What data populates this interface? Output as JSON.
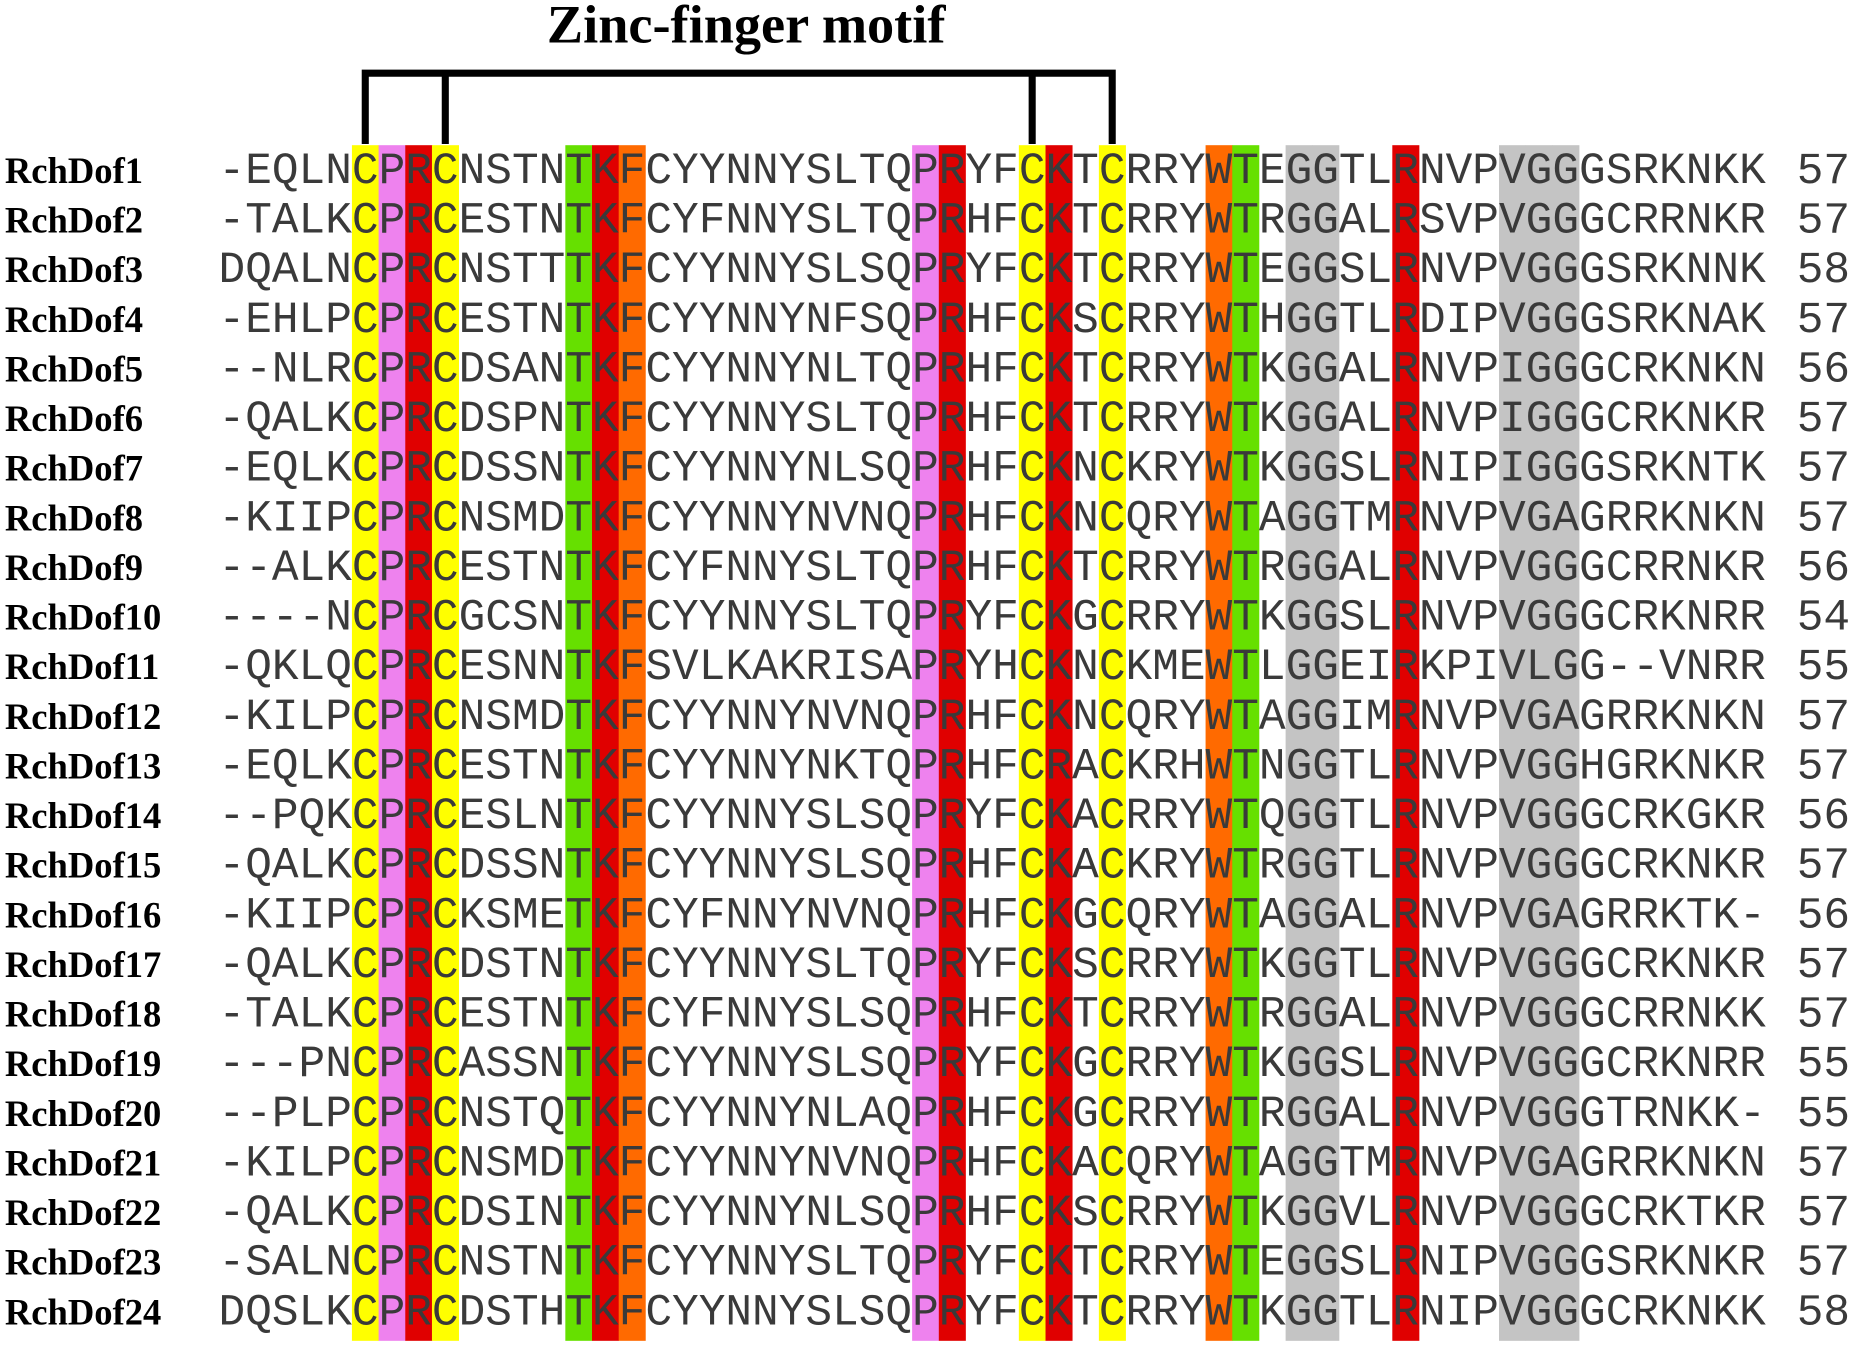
{
  "title": "Zinc-finger motif",
  "rows": [
    {
      "name": "RchDof1",
      "sequence": "-EQLNCPRCNSTNTKFCYYNNYSLTQPRYFCKTCRRYWTEGGTLRNVPVGGGSRKNKK",
      "length": 57
    },
    {
      "name": "RchDof2",
      "sequence": "-TALKCPRCESTNTKFCYFNNYSLTQPRHFCKTCRRYWTRGGALRSVPVGGGCRRNKR",
      "length": 57
    },
    {
      "name": "RchDof3",
      "sequence": "DQALNCPRCNSTTTKFCYYNNYSLSQPRYFCKTCRRYWTEGGSLRNVPVGGGSRKNNK",
      "length": 58
    },
    {
      "name": "RchDof4",
      "sequence": "-EHLPCPRCESTNTKFCYYNNYNFSQPRHFCKSCRRYWTHGGTLRDIPVGGGSRKNAK",
      "length": 57
    },
    {
      "name": "RchDof5",
      "sequence": "--NLRCPRCDSANTKFCYYNNYNLTQPRHFCKTCRRYWTKGGALRNVPIGGGCRKNKN",
      "length": 56
    },
    {
      "name": "RchDof6",
      "sequence": "-QALKCPRCDSPNTKFCYYNNYSLTQPRHFCKTCRRYWTKGGALRNVPIGGGCRKNKR",
      "length": 57
    },
    {
      "name": "RchDof7",
      "sequence": "-EQLKCPRCDSSNTKFCYYNNYNLSQPRHFCKNCKRYWTKGGSLRNIPIGGGSRKNTK",
      "length": 57
    },
    {
      "name": "RchDof8",
      "sequence": "-KIIPCPRCNSMDTKFCYYNNYNVNQPRHFCKNCQRYWTAGGTMRNVPVGAGRRKNKN",
      "length": 57
    },
    {
      "name": "RchDof9",
      "sequence": "--ALKCPRCESTNTKFCYFNNYSLTQPRHFCKTCRRYWTRGGALRNVPVGGGCRRNKR",
      "length": 56
    },
    {
      "name": "RchDof10",
      "sequence": "----NCPRCGCSNTKFCYYNNYSLTQPRYFCKGCRRYWTKGGSLRNVPVGGGCRKNRR",
      "length": 54
    },
    {
      "name": "RchDof11",
      "sequence": "-QKLQCPRCESNNTKFSVLKAKRISAPRYHCKNCKMEWTLGGEIRKPIVLGG--VNRR",
      "length": 55
    },
    {
      "name": "RchDof12",
      "sequence": "-KILPCPRCNSMDTKFCYYNNYNVNQPRHFCKNCQRYWTAGGIMRNVPVGAGRRKNKN",
      "length": 57
    },
    {
      "name": "RchDof13",
      "sequence": "-EQLKCPRCESTNTKFCYYNNYNKTQPRHFCRACKRHWTNGGTLRNVPVGGHGRKNKR",
      "length": 57
    },
    {
      "name": "RchDof14",
      "sequence": "--PQKCPRCESLNTKFCYYNNYSLSQPRYFCKACRRYWTQGGTLRNVPVGGGCRKGKR",
      "length": 56
    },
    {
      "name": "RchDof15",
      "sequence": "-QALKCPRCDSSNTKFCYYNNYSLSQPRHFCKACKRYWTRGGTLRNVPVGGGCRKNKR",
      "length": 57
    },
    {
      "name": "RchDof16",
      "sequence": "-KIIPCPRCKSMETKFCYFNNYNVNQPRHFCKGCQRYWTAGGALRNVPVGAGRRKTK-",
      "length": 56
    },
    {
      "name": "RchDof17",
      "sequence": "-QALKCPRCDSTNTKFCYYNNYSLTQPRYFCKSCRRYWTKGGTLRNVPVGGGCRKNKR",
      "length": 57
    },
    {
      "name": "RchDof18",
      "sequence": "-TALKCPRCESTNTKFCYFNNYSLSQPRHFCKTCRRYWTRGGALRNVPVGGGCRRNKK",
      "length": 57
    },
    {
      "name": "RchDof19",
      "sequence": "---PNCPRCASSNTKFCYYNNYSLSQPRYFCKGCRRYWTKGGSLRNVPVGGGCRKNRR",
      "length": 55
    },
    {
      "name": "RchDof20",
      "sequence": "--PLPCPRCNSTQTKFCYYNNYNLAQPRHFCKGCRRYWTRGGALRNVPVGGGTRNKK-",
      "length": 55
    },
    {
      "name": "RchDof21",
      "sequence": "-KILPCPRCNSMDTKFCYYNNYNVNQPRHFCKACQRYWTAGGTMRNVPVGAGRRKNKN",
      "length": 57
    },
    {
      "name": "RchDof22",
      "sequence": "-QALKCPRCDSINTKFCYYNNYNLSQPRHFCKSCRRYWTKGGVLRNVPVGGGCRKTKR",
      "length": 57
    },
    {
      "name": "RchDof23",
      "sequence": "-SALNCPRCNSTNTKFCYYNNYSLTQPRYFCKTCRRYWTEGGSLRNIPVGGGSRKNKR",
      "length": 57
    },
    {
      "name": "RchDof24",
      "sequence": "DQSLKCPRCDSTHTKFCYYNNYSLSQPRYFCKTCRRYWTKGGTLRNIPVGGGCRKNKK",
      "length": 58
    }
  ]
}
